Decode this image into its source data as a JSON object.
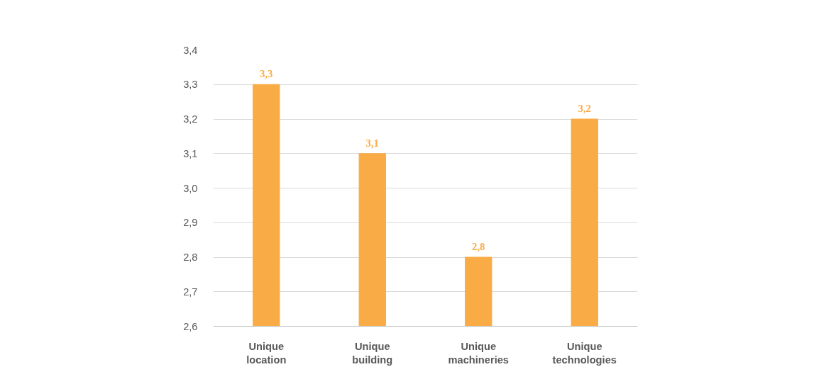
{
  "chart_data": {
    "type": "bar",
    "categories": [
      "Unique\nlocation",
      "Unique\nbuilding",
      "Unique\nmachineries",
      "Unique\ntechnologies"
    ],
    "values": [
      3.3,
      3.1,
      2.8,
      3.2
    ],
    "color": "#f9ac46",
    "value_labels": [
      "3,3",
      "3,1",
      "2,8",
      "3,2"
    ],
    "ylim": [
      2.6,
      3.4
    ],
    "yticks": [
      {
        "value": 2.6,
        "label": "2,6"
      },
      {
        "value": 2.7,
        "label": "2,7"
      },
      {
        "value": 2.8,
        "label": "2,8"
      },
      {
        "value": 2.9,
        "label": "2,9"
      },
      {
        "value": 3.0,
        "label": "3,0"
      },
      {
        "value": 3.1,
        "label": "3,1"
      },
      {
        "value": 3.2,
        "label": "3,2"
      },
      {
        "value": 3.3,
        "label": "3,3"
      },
      {
        "value": 3.4,
        "label": "3,4"
      }
    ],
    "grid": "y"
  }
}
